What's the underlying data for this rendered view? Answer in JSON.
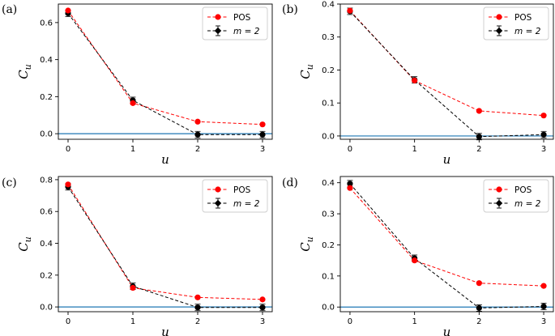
{
  "figure": {
    "series_colors": {
      "pos": "#ff0000",
      "m2": "#000000",
      "baseline": "#1f77b4"
    }
  },
  "chart_data": [
    {
      "type": "line",
      "panel": "(a)",
      "xlabel": "u",
      "ylabel": "C_u",
      "x": [
        0,
        1,
        2,
        3
      ],
      "xticks": [
        "0",
        "1",
        "2",
        "3"
      ],
      "ylim": [
        -0.03,
        0.7
      ],
      "yticks": [
        "0.0",
        "0.2",
        "0.4",
        "0.6"
      ],
      "ytick_values": [
        0.0,
        0.2,
        0.4,
        0.6
      ],
      "baseline": 0,
      "legend": {
        "position": "top-right",
        "entries": [
          "POS",
          "m = 2"
        ]
      },
      "series": [
        {
          "name": "POS",
          "values": [
            0.665,
            0.165,
            0.065,
            0.05
          ]
        },
        {
          "name": "m = 2",
          "values": [
            0.65,
            0.18,
            -0.005,
            -0.005
          ]
        }
      ]
    },
    {
      "type": "line",
      "panel": "(b)",
      "xlabel": "u",
      "ylabel": "C_u",
      "x": [
        0,
        1,
        2,
        3
      ],
      "xticks": [
        "0",
        "1",
        "2",
        "3"
      ],
      "ylim": [
        -0.01,
        0.4
      ],
      "yticks": [
        "0.0",
        "0.1",
        "0.2",
        "0.3",
        "0.4"
      ],
      "ytick_values": [
        0.0,
        0.1,
        0.2,
        0.3,
        0.4
      ],
      "baseline": 0,
      "legend": {
        "position": "top-right",
        "entries": [
          "POS",
          "m = 2"
        ]
      },
      "series": [
        {
          "name": "POS",
          "values": [
            0.38,
            0.168,
            0.076,
            0.062
          ]
        },
        {
          "name": "m = 2",
          "values": [
            0.378,
            0.17,
            -0.002,
            0.004
          ]
        }
      ]
    },
    {
      "type": "line",
      "panel": "(c)",
      "xlabel": "u",
      "ylabel": "C_u",
      "x": [
        0,
        1,
        2,
        3
      ],
      "xticks": [
        "0",
        "1",
        "2",
        "3"
      ],
      "ylim": [
        -0.03,
        0.82
      ],
      "yticks": [
        "0.0",
        "0.2",
        "0.4",
        "0.6",
        "0.8"
      ],
      "ytick_values": [
        0.0,
        0.2,
        0.4,
        0.6,
        0.8
      ],
      "baseline": 0,
      "legend": {
        "position": "top-right",
        "entries": [
          "POS",
          "m = 2"
        ]
      },
      "series": [
        {
          "name": "POS",
          "values": [
            0.77,
            0.12,
            0.06,
            0.047
          ]
        },
        {
          "name": "m = 2",
          "values": [
            0.755,
            0.13,
            -0.003,
            -0.003
          ]
        }
      ]
    },
    {
      "type": "line",
      "panel": "(d)",
      "xlabel": "u",
      "ylabel": "C_u",
      "x": [
        0,
        1,
        2,
        3
      ],
      "xticks": [
        "0",
        "1",
        "2",
        "3"
      ],
      "ylim": [
        -0.015,
        0.42
      ],
      "yticks": [
        "0.0",
        "0.1",
        "0.2",
        "0.3",
        "0.4"
      ],
      "ytick_values": [
        0.0,
        0.1,
        0.2,
        0.3,
        0.4
      ],
      "baseline": 0,
      "legend": {
        "position": "top-right",
        "entries": [
          "POS",
          "m = 2"
        ]
      },
      "series": [
        {
          "name": "POS",
          "values": [
            0.383,
            0.15,
            0.077,
            0.068
          ]
        },
        {
          "name": "m = 2",
          "values": [
            0.397,
            0.157,
            -0.003,
            0.002
          ]
        }
      ]
    }
  ]
}
